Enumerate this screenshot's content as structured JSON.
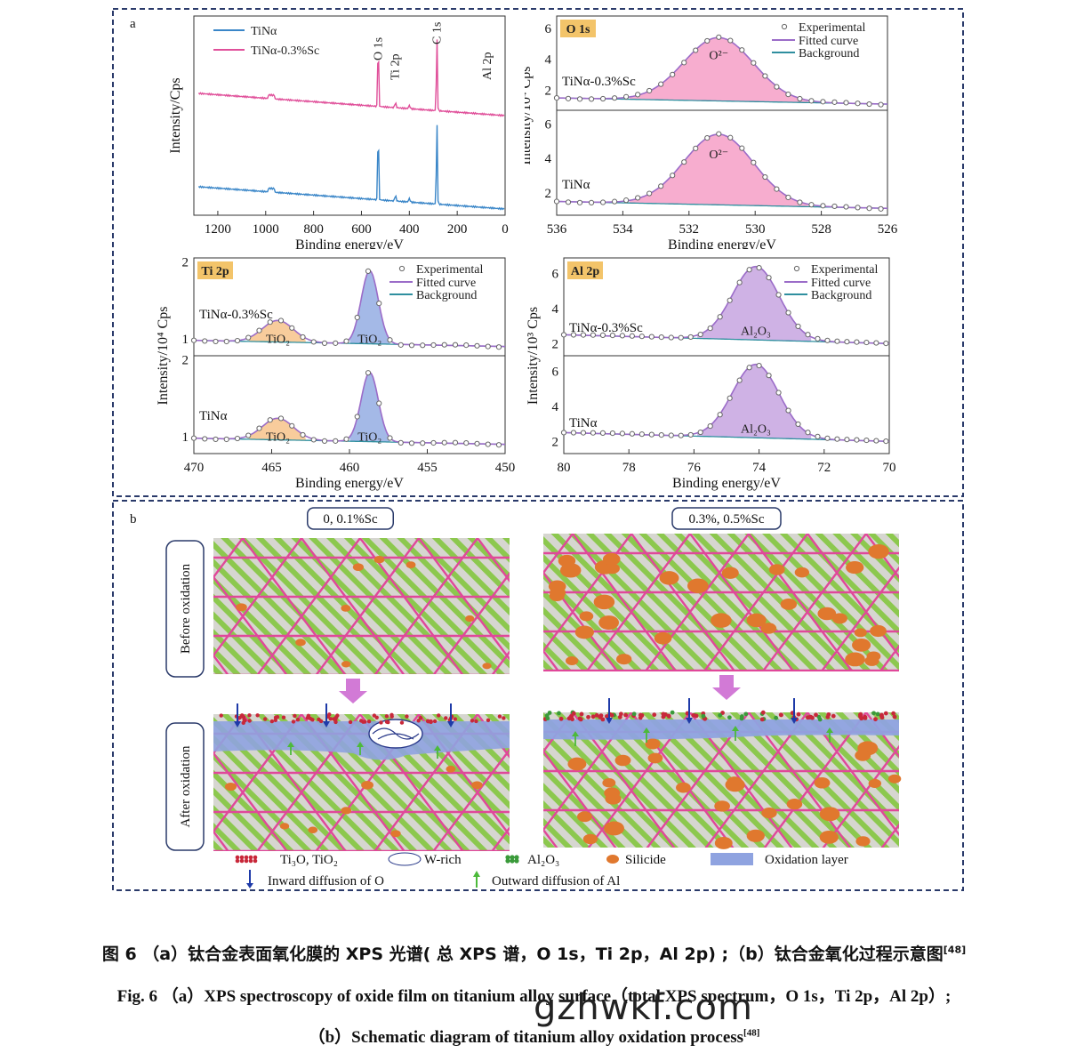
{
  "panel_a_label": "a",
  "panel_b_label": "b",
  "chart_data": [
    {
      "type": "line",
      "id": "survey",
      "xlabel": "Binding energy/eV",
      "ylabel": "Intensity/Cps",
      "xticks": [
        1200,
        1000,
        800,
        600,
        400,
        200,
        0
      ],
      "xlim": [
        1300,
        0
      ],
      "legend": [
        "TiNα",
        "TiNα-0.3%Sc"
      ],
      "colors": [
        "#3a86c8",
        "#e0509a"
      ],
      "peak_labels": [
        "O 1s",
        "Ti 2p",
        "C 1s",
        "Al 2p"
      ],
      "peaks_ev": [
        530,
        458,
        285,
        74
      ]
    },
    {
      "type": "line",
      "id": "o1s",
      "tag": "O 1s",
      "xlabel": "Binding energy/eV",
      "ylabel": "Intensity/10⁴ Cps",
      "xticks": [
        536,
        534,
        532,
        530,
        528,
        526
      ],
      "xlim": [
        536,
        526
      ],
      "upper_yticks": [
        2,
        4,
        6
      ],
      "lower_yticks": [
        2,
        4,
        6
      ],
      "legend": [
        "Experimental",
        "Fitted curve",
        "Background"
      ],
      "upper_series": "TiNα-0.3%Sc",
      "lower_series": "TiNα",
      "peak_label": "O²⁻",
      "peak_center": 531.1,
      "peak_height": 5.4
    },
    {
      "type": "line",
      "id": "ti2p",
      "tag": "Ti 2p",
      "xlabel": "Binding energy/eV",
      "ylabel": "Intensity/10⁴ Cps",
      "xticks": [
        470,
        465,
        460,
        455,
        450
      ],
      "xlim": [
        470,
        450
      ],
      "upper_yticks": [
        1,
        2
      ],
      "lower_yticks": [
        1,
        2
      ],
      "legend": [
        "Experimental",
        "Fitted curve",
        "Background"
      ],
      "upper_series": "TiNα-0.3%Sc",
      "lower_series": "TiNα",
      "peak_labels": [
        "TiO₂",
        "TiO₂"
      ],
      "peak_centers": [
        464.5,
        458.7
      ]
    },
    {
      "type": "line",
      "id": "al2p",
      "tag": "Al 2p",
      "xlabel": "Binding energy/eV",
      "ylabel": "Intensity/10³ Cps",
      "xticks": [
        80,
        78,
        76,
        74,
        72,
        70
      ],
      "xlim": [
        80,
        70
      ],
      "upper_yticks": [
        2,
        4,
        6
      ],
      "lower_yticks": [
        2,
        4,
        6
      ],
      "legend": [
        "Experimental",
        "Fitted curve",
        "Background"
      ],
      "upper_series": "TiNα-0.3%Sc",
      "lower_series": "TiNα",
      "peak_label": "Al₂O₃",
      "peak_center": 74.1
    }
  ],
  "schematic": {
    "left_title": "0, 0.1%Sc",
    "right_title": "0.3%, 0.5%Sc",
    "row_before": "Before oxidation",
    "row_after": "After oxidation",
    "legend": {
      "ti_oxide": "Ti₃O, TiO₂",
      "w_rich": "W-rich",
      "al2o3": "Al₂O₃",
      "silicide": "Silicide",
      "ox_layer": "Oxidation layer",
      "inward": "Inward diffusion of O",
      "outward": "Outward diffusion of Al"
    }
  },
  "caption": {
    "cn": "图 6 （a）钛合金表面氧化膜的 XPS 光谱( 总 XPS 谱，O 1s，Ti 2p，Al 2p) ;（b）钛合金氧化过程示意图",
    "cn_ref": "[48]",
    "en_line1": "Fig. 6 （a）XPS spectroscopy of oxide film on titanium alloy surface（total XPS spectrum，O 1s，Ti 2p，Al 2p）;",
    "en_line2": "（b）Schematic diagram of titanium alloy oxidation process",
    "en_ref": "[48]"
  },
  "watermark": "gzhwkf.com",
  "colors": {
    "frame": "#2a3a6a",
    "pink": "#e0509a",
    "blue": "#3a86c8",
    "purple": "#9b6cc8",
    "teal": "#2f8f9f",
    "grain_green": "#8cc84e",
    "boundary": "#e0489a",
    "silicide": "#e0782e",
    "oxlayer": "#8fa3e0"
  }
}
